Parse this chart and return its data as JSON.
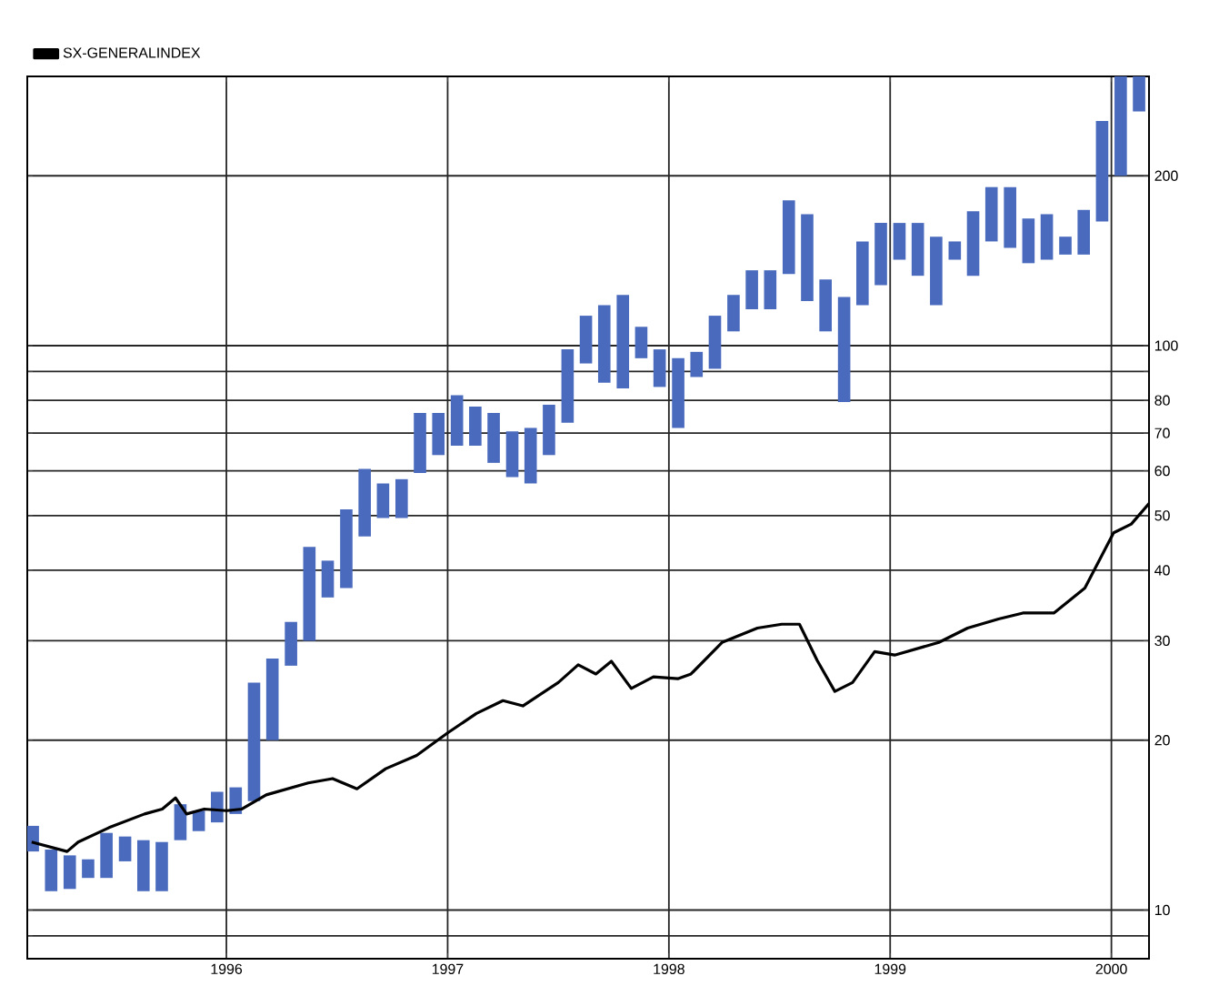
{
  "chart_data": {
    "type": "bar",
    "log": "y",
    "grid": true,
    "legend": "top left",
    "xlim": [
      1995.1,
      2000.17
    ],
    "ylim": [
      8.2,
      300
    ],
    "xticks": [
      1996,
      1997,
      1998,
      1999,
      2000
    ],
    "yticks": [
      {
        "value": 9,
        "label": null
      },
      10,
      20,
      30,
      40,
      50,
      60,
      70,
      80,
      {
        "value": 90,
        "label": null
      },
      100,
      200
    ],
    "series": [
      {
        "color": "#4a6bbd",
        "x": [
          1995.125,
          1995.208,
          1995.292,
          1995.375,
          1995.458,
          1995.542,
          1995.625,
          1995.708,
          1995.792,
          1995.875,
          1995.958,
          1996.042,
          1996.125,
          1996.208,
          1996.292,
          1996.375,
          1996.458,
          1996.542,
          1996.625,
          1996.708,
          1996.792,
          1996.875,
          1996.958,
          1997.042,
          1997.125,
          1997.208,
          1997.292,
          1997.375,
          1997.458,
          1997.542,
          1997.625,
          1997.708,
          1997.792,
          1997.875,
          1997.958,
          1998.042,
          1998.125,
          1998.208,
          1998.292,
          1998.375,
          1998.458,
          1998.542,
          1998.625,
          1998.708,
          1998.792,
          1998.875,
          1998.958,
          1999.042,
          1999.125,
          1999.208,
          1999.292,
          1999.375,
          1999.458,
          1999.542,
          1999.625,
          1999.708,
          1999.792,
          1999.875,
          1999.958,
          2000.042,
          2000.125
        ],
        "base": [
          12.7,
          10.8,
          10.9,
          11.4,
          11.4,
          12.2,
          10.8,
          10.8,
          13.3,
          13.8,
          14.3,
          14.8,
          15.6,
          20,
          27.1,
          30,
          35.8,
          37.2,
          45.9,
          49.5,
          49.5,
          59.5,
          64,
          66.5,
          66.5,
          62,
          58.5,
          57,
          64,
          73,
          93,
          86,
          84,
          95,
          84.5,
          71.5,
          88,
          91,
          106,
          116,
          116,
          134,
          120,
          106,
          79.5,
          118,
          128,
          142,
          133,
          118,
          142,
          133,
          153,
          149,
          140,
          142,
          145,
          145,
          166,
          200,
          260
        ],
        "values": [
          1.4,
          2.0,
          1.6,
          0.9,
          2.3,
          1.3,
          2.5,
          2.4,
          2.1,
          1.2,
          1.9,
          1.7,
          9.7,
          7.9,
          5.3,
          14,
          5.8,
          14.1,
          14.6,
          7.5,
          8.5,
          16.5,
          12,
          15.2,
          11.5,
          14,
          12,
          14.5,
          14.6,
          25.5,
          20,
          32,
          39,
          13,
          14,
          23.5,
          9.5,
          22,
          17,
          20,
          20,
          47,
          51,
          25,
          42.5,
          35,
          37,
          23,
          32,
          38,
          11,
          40,
          38,
          42,
          28,
          29,
          11,
          29,
          84,
          100,
          40
        ]
      },
      {
        "type": "line",
        "name": "SX-GENERALINDEX",
        "color": "#000000",
        "x": [
          1995.12,
          1995.28,
          1995.33,
          1995.47,
          1995.63,
          1995.71,
          1995.77,
          1995.82,
          1995.9,
          1996.0,
          1996.07,
          1996.18,
          1996.37,
          1996.48,
          1996.59,
          1996.72,
          1996.86,
          1997.0,
          1997.13,
          1997.25,
          1997.34,
          1997.5,
          1997.59,
          1997.67,
          1997.74,
          1997.83,
          1997.93,
          1998.04,
          1998.1,
          1998.24,
          1998.4,
          1998.51,
          1998.59,
          1998.67,
          1998.75,
          1998.83,
          1998.93,
          1999.02,
          1999.22,
          1999.35,
          1999.49,
          1999.6,
          1999.74,
          1999.88,
          2000.01,
          2000.09,
          2000.17
        ],
        "values": [
          13.2,
          12.7,
          13.2,
          14,
          14.8,
          15.1,
          15.8,
          14.8,
          15.1,
          15,
          15.1,
          16,
          16.8,
          17.1,
          16.4,
          17.8,
          18.8,
          20.6,
          22.3,
          23.5,
          23,
          25.3,
          27.2,
          26.2,
          27.6,
          24.7,
          25.9,
          25.7,
          26.2,
          29.8,
          31.6,
          32.1,
          32.1,
          27.7,
          24.4,
          25.3,
          28.7,
          28.3,
          29.8,
          31.6,
          32.8,
          33.6,
          33.6,
          37.2,
          46.6,
          48.3,
          52.5
        ]
      }
    ]
  }
}
